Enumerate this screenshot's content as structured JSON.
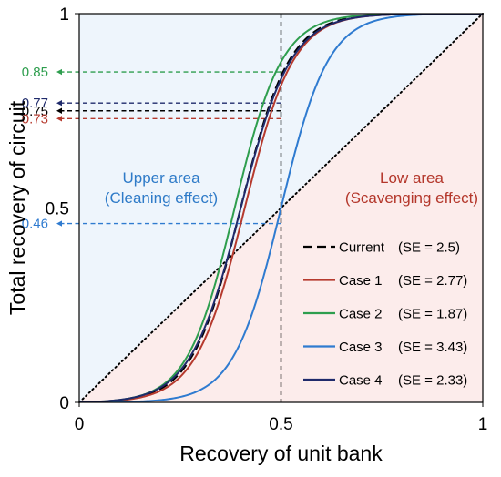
{
  "chart_data": {
    "type": "line",
    "xlabel": "Recovery of unit bank",
    "ylabel": "Total recovery of circuit",
    "xlim": [
      0,
      1
    ],
    "ylim": [
      0,
      1
    ],
    "x_ticks": [
      {
        "value": 0,
        "label": "0"
      },
      {
        "value": 0.5,
        "label": "0.5"
      },
      {
        "value": 1,
        "label": "1"
      }
    ],
    "y_ticks": [
      {
        "value": 0,
        "label": "0"
      },
      {
        "value": 0.5,
        "label": "0.5"
      },
      {
        "value": 1,
        "label": "1"
      }
    ],
    "grid": false,
    "legend_position": "bottom-right",
    "regions": [
      {
        "line1": "Upper area",
        "line2": "(Cleaning effect)",
        "side": "above-diagonal",
        "color": "#eef5fc",
        "text_color": "#2f7bc8"
      },
      {
        "line1": "Low area",
        "line2": "(Scavenging effect)",
        "side": "below-diagonal",
        "color": "#fceceb",
        "text_color": "#b4372b"
      }
    ],
    "diagonal": {
      "style": "dotted",
      "color": "#000000"
    },
    "vertical_reference": {
      "x": 0.5,
      "style": "dashed",
      "color": "#000000"
    },
    "series": [
      {
        "name": "Current",
        "se_label": "(SE = 2.5)",
        "midpoint": 0.4,
        "steepness": 16.5,
        "color": "#000000",
        "dash": "dashed",
        "x": [
          0.0,
          0.1,
          0.2,
          0.25,
          0.3,
          0.35,
          0.4,
          0.45,
          0.5,
          0.55,
          0.6,
          0.7,
          0.8,
          0.9,
          1.0
        ],
        "y": [
          0.0,
          0.0,
          0.01,
          0.03,
          0.12,
          0.27,
          0.5,
          0.64,
          0.75,
          0.86,
          0.93,
          0.98,
          0.99,
          1.0,
          1.0
        ]
      },
      {
        "name": "Case 1",
        "se_label": "(SE = 2.77)",
        "midpoint": 0.41,
        "steepness": 16.5,
        "color": "#b63a2e",
        "dash": "solid",
        "x": [
          0.0,
          0.1,
          0.2,
          0.25,
          0.3,
          0.35,
          0.4,
          0.45,
          0.5,
          0.55,
          0.6,
          0.7,
          0.8,
          0.9,
          1.0
        ],
        "y": [
          0.0,
          0.0,
          0.01,
          0.03,
          0.1,
          0.25,
          0.44,
          0.62,
          0.73,
          0.84,
          0.92,
          0.98,
          0.99,
          1.0,
          1.0
        ]
      },
      {
        "name": "Case 2",
        "se_label": "(SE = 1.87)",
        "midpoint": 0.385,
        "steepness": 17,
        "color": "#2e9e4e",
        "dash": "solid",
        "x": [
          0.0,
          0.1,
          0.2,
          0.25,
          0.3,
          0.35,
          0.4,
          0.45,
          0.5,
          0.55,
          0.6,
          0.7,
          0.8,
          0.9,
          1.0
        ],
        "y": [
          0.0,
          0.0,
          0.01,
          0.05,
          0.16,
          0.34,
          0.56,
          0.74,
          0.85,
          0.92,
          0.96,
          0.99,
          1.0,
          1.0,
          1.0
        ]
      },
      {
        "name": "Case 3",
        "se_label": "(SE = 3.43)",
        "midpoint": 0.5,
        "steepness": 17,
        "color": "#2f7bd0",
        "dash": "solid",
        "x": [
          0.0,
          0.1,
          0.2,
          0.3,
          0.35,
          0.4,
          0.45,
          0.5,
          0.55,
          0.6,
          0.65,
          0.7,
          0.8,
          0.9,
          1.0
        ],
        "y": [
          0.0,
          0.0,
          0.0,
          0.02,
          0.05,
          0.12,
          0.28,
          0.46,
          0.63,
          0.77,
          0.87,
          0.93,
          0.98,
          1.0,
          1.0
        ]
      },
      {
        "name": "Case 4",
        "se_label": "(SE = 2.33)",
        "midpoint": 0.4,
        "steepness": 16,
        "color": "#1f2a6b",
        "dash": "solid",
        "x": [
          0.0,
          0.1,
          0.2,
          0.25,
          0.3,
          0.35,
          0.4,
          0.45,
          0.5,
          0.55,
          0.6,
          0.7,
          0.8,
          0.9,
          1.0
        ],
        "y": [
          0.0,
          0.0,
          0.01,
          0.04,
          0.13,
          0.29,
          0.5,
          0.66,
          0.77,
          0.87,
          0.94,
          0.98,
          0.99,
          1.0,
          1.0
        ]
      }
    ],
    "annotations": [
      {
        "label": "0.85",
        "y": 0.85,
        "x": 0.5,
        "color": "#2e9e4e",
        "series": "Case 2"
      },
      {
        "label": "0.77",
        "y": 0.77,
        "x": 0.5,
        "color": "#1f2a6b",
        "series": "Case 4"
      },
      {
        "label": "0.75",
        "y": 0.75,
        "x": 0.5,
        "color": "#000000",
        "series": "Current"
      },
      {
        "label": "0.73",
        "y": 0.73,
        "x": 0.5,
        "color": "#b63a2e",
        "series": "Case 1"
      },
      {
        "label": "0.46",
        "y": 0.46,
        "x": 0.5,
        "color": "#2f7bd0",
        "series": "Case 3"
      }
    ]
  }
}
